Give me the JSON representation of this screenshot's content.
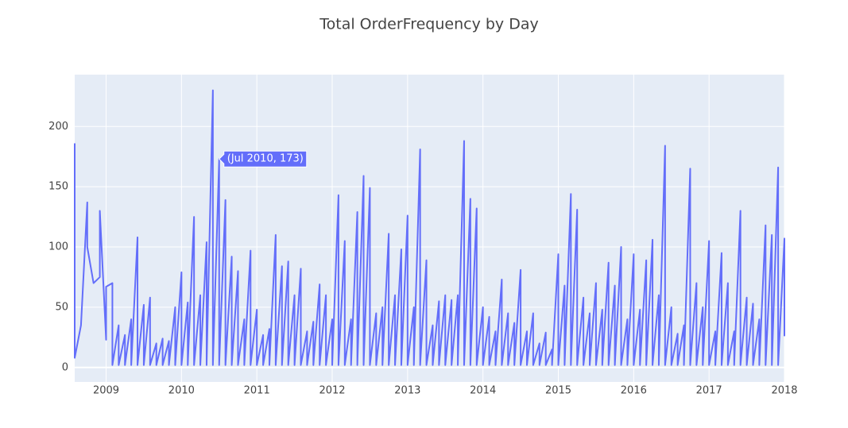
{
  "chart_data": {
    "type": "line",
    "title": "Total OrderFrequency by Day",
    "hover_label": "(Jul 2010, 173)",
    "hover_point": {
      "x": "2010-07",
      "y": 173
    },
    "x": [
      "2008-08",
      "2008-08",
      "2008-09",
      "2008-10",
      "2008-10",
      "2008-11",
      "2008-12",
      "2008-12",
      "2009-01",
      "2009-01",
      "2009-02",
      "2009-02",
      "2009-03",
      "2009-03",
      "2009-04",
      "2009-04",
      "2009-05",
      "2009-05",
      "2009-06",
      "2009-06",
      "2009-07",
      "2009-07",
      "2009-08",
      "2009-08",
      "2009-09",
      "2009-09",
      "2009-10",
      "2009-10",
      "2009-11",
      "2009-11",
      "2009-12",
      "2009-12",
      "2010-01",
      "2010-01",
      "2010-02",
      "2010-02",
      "2010-03",
      "2010-03",
      "2010-04",
      "2010-04",
      "2010-05",
      "2010-05",
      "2010-06",
      "2010-06",
      "2010-07",
      "2010-07",
      "2010-08",
      "2010-08",
      "2010-09",
      "2010-09",
      "2010-10",
      "2010-10",
      "2010-11",
      "2010-11",
      "2010-12",
      "2010-12",
      "2011-01",
      "2011-01",
      "2011-02",
      "2011-02",
      "2011-03",
      "2011-03",
      "2011-04",
      "2011-04",
      "2011-05",
      "2011-05",
      "2011-06",
      "2011-06",
      "2011-07",
      "2011-07",
      "2011-08",
      "2011-08",
      "2011-09",
      "2011-09",
      "2011-10",
      "2011-10",
      "2011-11",
      "2011-11",
      "2011-12",
      "2011-12",
      "2012-01",
      "2012-01",
      "2012-02",
      "2012-02",
      "2012-03",
      "2012-03",
      "2012-04",
      "2012-04",
      "2012-05",
      "2012-05",
      "2012-06",
      "2012-06",
      "2012-07",
      "2012-07",
      "2012-08",
      "2012-08",
      "2012-09",
      "2012-09",
      "2012-10",
      "2012-10",
      "2012-11",
      "2012-11",
      "2012-12",
      "2012-12",
      "2013-01",
      "2013-01",
      "2013-02",
      "2013-02",
      "2013-03",
      "2013-03",
      "2013-04",
      "2013-04",
      "2013-05",
      "2013-05",
      "2013-06",
      "2013-06",
      "2013-07",
      "2013-07",
      "2013-08",
      "2013-08",
      "2013-09",
      "2013-09",
      "2013-10",
      "2013-10",
      "2013-11",
      "2013-11",
      "2013-12",
      "2013-12",
      "2014-01",
      "2014-01",
      "2014-02",
      "2014-02",
      "2014-03",
      "2014-03",
      "2014-04",
      "2014-04",
      "2014-05",
      "2014-05",
      "2014-06",
      "2014-06",
      "2014-07",
      "2014-07",
      "2014-08",
      "2014-08",
      "2014-09",
      "2014-09",
      "2014-10",
      "2014-10",
      "2014-11",
      "2014-11",
      "2014-12",
      "2014-12",
      "2015-01",
      "2015-01",
      "2015-02",
      "2015-02",
      "2015-03",
      "2015-03",
      "2015-04",
      "2015-04",
      "2015-05",
      "2015-05",
      "2015-06",
      "2015-06",
      "2015-07",
      "2015-07",
      "2015-08",
      "2015-08",
      "2015-09",
      "2015-09",
      "2015-10",
      "2015-10",
      "2015-11",
      "2015-11",
      "2015-12",
      "2015-12",
      "2016-01",
      "2016-01",
      "2016-02",
      "2016-02",
      "2016-03",
      "2016-03",
      "2016-04",
      "2016-04",
      "2016-05",
      "2016-05",
      "2016-06",
      "2016-06",
      "2016-07",
      "2016-07",
      "2016-08",
      "2016-08",
      "2016-09",
      "2016-09",
      "2016-10",
      "2016-10",
      "2016-11",
      "2016-11",
      "2016-12",
      "2016-12",
      "2017-01",
      "2017-01",
      "2017-02",
      "2017-02",
      "2017-03",
      "2017-03",
      "2017-04",
      "2017-04",
      "2017-05",
      "2017-05",
      "2017-06",
      "2017-06",
      "2017-07",
      "2017-07",
      "2017-08",
      "2017-08",
      "2017-09",
      "2017-09",
      "2017-10",
      "2017-10",
      "2017-11",
      "2017-11",
      "2017-12",
      "2017-12",
      "2018-01",
      "2018-01"
    ],
    "series": [
      {
        "name": "OrderFrequency",
        "color": "#636efa",
        "values": [
          186,
          8,
          35,
          137,
          100,
          70,
          75,
          130,
          23,
          67,
          70,
          2,
          35,
          2,
          27,
          2,
          40,
          2,
          108,
          2,
          52,
          2,
          58,
          2,
          20,
          2,
          24,
          2,
          22,
          2,
          50,
          2,
          79,
          2,
          54,
          2,
          125,
          2,
          60,
          2,
          104,
          2,
          230,
          2,
          173,
          2,
          139,
          2,
          92,
          2,
          80,
          2,
          40,
          2,
          97,
          2,
          48,
          2,
          27,
          2,
          32,
          2,
          110,
          2,
          84,
          2,
          88,
          2,
          60,
          2,
          82,
          2,
          30,
          2,
          38,
          2,
          69,
          2,
          60,
          2,
          40,
          2,
          143,
          2,
          105,
          2,
          40,
          2,
          129,
          2,
          159,
          2,
          149,
          2,
          45,
          2,
          50,
          2,
          111,
          2,
          60,
          2,
          98,
          2,
          126,
          2,
          50,
          2,
          181,
          2,
          89,
          2,
          35,
          2,
          55,
          2,
          60,
          2,
          56,
          2,
          60,
          2,
          188,
          2,
          140,
          2,
          132,
          2,
          50,
          2,
          42,
          2,
          30,
          2,
          73,
          2,
          45,
          2,
          37,
          2,
          81,
          2,
          30,
          2,
          45,
          2,
          20,
          2,
          29,
          2,
          15,
          2,
          94,
          2,
          68,
          2,
          144,
          2,
          131,
          2,
          58,
          2,
          45,
          2,
          70,
          2,
          48,
          2,
          87,
          2,
          68,
          2,
          100,
          2,
          40,
          2,
          94,
          2,
          48,
          2,
          89,
          2,
          106,
          2,
          60,
          2,
          184,
          2,
          50,
          2,
          28,
          2,
          35,
          2,
          165,
          2,
          70,
          2,
          50,
          2,
          105,
          2,
          30,
          2,
          95,
          2,
          70,
          2,
          30,
          2,
          130,
          2,
          58,
          2,
          53,
          2,
          40,
          2,
          118,
          2,
          110,
          2,
          166,
          2,
          107,
          26
        ]
      }
    ],
    "xlim": [
      "2008-08",
      "2018-01"
    ],
    "xticks": [
      {
        "value": "2009-01",
        "label": "2009"
      },
      {
        "value": "2010-01",
        "label": "2010"
      },
      {
        "value": "2011-01",
        "label": "2011"
      },
      {
        "value": "2012-01",
        "label": "2012"
      },
      {
        "value": "2013-01",
        "label": "2013"
      },
      {
        "value": "2014-01",
        "label": "2014"
      },
      {
        "value": "2015-01",
        "label": "2015"
      },
      {
        "value": "2016-01",
        "label": "2016"
      },
      {
        "value": "2017-01",
        "label": "2017"
      },
      {
        "value": "2018-01",
        "label": "2018"
      }
    ],
    "ylim": [
      -12,
      243
    ],
    "yticks": [
      0,
      50,
      100,
      150,
      200
    ],
    "grid": true
  }
}
